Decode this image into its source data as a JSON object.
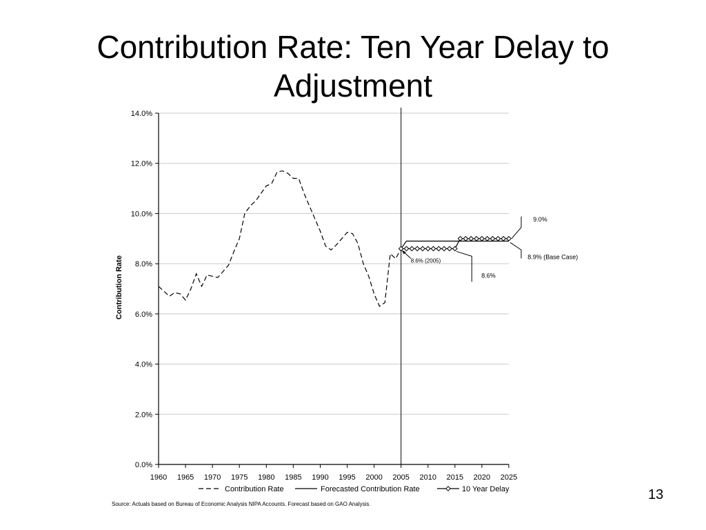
{
  "slide": {
    "title_line1": "Contribution Rate: Ten Year Delay to",
    "title_line2": "Adjustment",
    "page_number": "13",
    "source": "Source: Actuals based on Bureau of Economic Analysis NIPA Accounts.  Forecast based on GAO Analysis."
  },
  "chart_data": {
    "type": "line",
    "title": "",
    "xlabel": "",
    "ylabel": "Contribution Rate",
    "xlim": [
      1960,
      2025
    ],
    "ylim": [
      0,
      14
    ],
    "x_ticks": [
      1960,
      1965,
      1970,
      1975,
      1980,
      1985,
      1990,
      1995,
      2000,
      2005,
      2010,
      2015,
      2020,
      2025
    ],
    "y_ticks": [
      0,
      2,
      4,
      6,
      8,
      10,
      12,
      14
    ],
    "y_tick_labels": [
      "0.0%",
      "2.0%",
      "4.0%",
      "6.0%",
      "8.0%",
      "10.0%",
      "12.0%",
      "14.0%"
    ],
    "grid": "horizontal",
    "legend_position": "bottom",
    "vertical_marker_year": 2005,
    "series": [
      {
        "name": "Contribution Rate",
        "style": "dashed",
        "x": [
          1960,
          1961,
          1962,
          1963,
          1964,
          1965,
          1966,
          1967,
          1968,
          1969,
          1970,
          1971,
          1972,
          1973,
          1974,
          1975,
          1976,
          1977,
          1978,
          1979,
          1980,
          1981,
          1982,
          1983,
          1984,
          1985,
          1986,
          1987,
          1988,
          1989,
          1990,
          1991,
          1992,
          1993,
          1994,
          1995,
          1996,
          1997,
          1998,
          1999,
          2000,
          2001,
          2002,
          2003,
          2004,
          2005
        ],
        "values": [
          7.1,
          6.9,
          6.7,
          6.85,
          6.8,
          6.55,
          7.0,
          7.6,
          7.1,
          7.55,
          7.5,
          7.45,
          7.7,
          7.95,
          8.5,
          9.0,
          10.0,
          10.3,
          10.5,
          10.8,
          11.1,
          11.2,
          11.65,
          11.7,
          11.6,
          11.4,
          11.4,
          10.8,
          10.3,
          9.8,
          9.3,
          8.7,
          8.55,
          8.75,
          9.0,
          9.25,
          9.2,
          8.8,
          8.0,
          7.5,
          6.8,
          6.3,
          6.45,
          8.4,
          8.2,
          8.6
        ]
      },
      {
        "name": "Forecasted Contribution Rate",
        "style": "solid",
        "x": [
          2005,
          2006,
          2016,
          2025
        ],
        "values": [
          8.6,
          8.9,
          8.9,
          8.9
        ]
      },
      {
        "name": "10 Year Delay",
        "style": "solid-diamond",
        "x": [
          2005,
          2006,
          2007,
          2008,
          2009,
          2010,
          2011,
          2012,
          2013,
          2014,
          2015,
          2016,
          2017,
          2018,
          2019,
          2020,
          2021,
          2022,
          2023,
          2024,
          2025
        ],
        "values": [
          8.6,
          8.6,
          8.6,
          8.6,
          8.6,
          8.6,
          8.6,
          8.6,
          8.6,
          8.6,
          8.6,
          9.0,
          9.0,
          9.0,
          9.0,
          9.0,
          9.0,
          9.0,
          9.0,
          9.0,
          9.0
        ]
      }
    ],
    "annotations": [
      {
        "text": "9.0%",
        "x": 2029,
        "y": 9.0
      },
      {
        "text": "8.9% (Base Case)",
        "x": 2029,
        "y": 8.9
      },
      {
        "text": "8.6% (2005)",
        "x": 2005,
        "y": 8.6
      },
      {
        "text": "8.6%",
        "x": 2018,
        "y": 8.6
      }
    ]
  }
}
